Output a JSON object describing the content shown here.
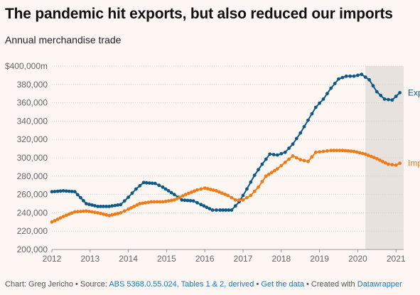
{
  "title": "The pandemic hit exports, but also reduced our imports",
  "subtitle": "Annual merchandise trade",
  "footer": {
    "credit": "Chart: Greg Jericho",
    "source_prefix": "Source:",
    "source": "ABS 5368.0.55.024, Tables 1 & 2, derived",
    "get_data": "Get the data",
    "created_prefix": "Created with",
    "tool": "Datawrapper"
  },
  "colors": {
    "exports": "#0d5a85",
    "imports": "#f07a14",
    "highlight": "#e8e2df",
    "grid": "#d6d0cd"
  },
  "chart_data": {
    "type": "line",
    "title": "The pandemic hit exports, but also reduced our imports",
    "subtitle": "Annual merchandise trade",
    "xlabel": "",
    "ylabel": "",
    "xlim": [
      2012,
      2021.2
    ],
    "ylim": [
      200000,
      400000
    ],
    "x_ticks": [
      "2012",
      "2013",
      "2014",
      "2015",
      "2016",
      "2017",
      "2018",
      "2019",
      "2020",
      "2021"
    ],
    "y_ticks": [
      "$400,000m",
      "380,000",
      "360,000",
      "340,000",
      "320,000",
      "300,000",
      "280,000",
      "260,000",
      "240,000",
      "220,000",
      "200,000"
    ],
    "grid": true,
    "highlight_range": [
      2020.2,
      2021.2
    ],
    "series": [
      {
        "name": "Exports",
        "points": [
          [
            2012.0,
            263000
          ],
          [
            2012.3,
            264000
          ],
          [
            2012.6,
            263000
          ],
          [
            2012.9,
            250000
          ],
          [
            2013.2,
            247000
          ],
          [
            2013.5,
            247000
          ],
          [
            2013.8,
            249000
          ],
          [
            2014.0,
            257000
          ],
          [
            2014.2,
            266000
          ],
          [
            2014.4,
            273000
          ],
          [
            2014.7,
            272000
          ],
          [
            2014.9,
            268000
          ],
          [
            2015.2,
            260000
          ],
          [
            2015.4,
            254000
          ],
          [
            2015.7,
            253000
          ],
          [
            2015.9,
            249000
          ],
          [
            2016.2,
            243000
          ],
          [
            2016.4,
            243000
          ],
          [
            2016.7,
            243000
          ],
          [
            2016.9,
            252000
          ],
          [
            2017.1,
            266000
          ],
          [
            2017.3,
            281000
          ],
          [
            2017.5,
            293000
          ],
          [
            2017.7,
            304000
          ],
          [
            2017.9,
            303000
          ],
          [
            2018.1,
            306000
          ],
          [
            2018.3,
            315000
          ],
          [
            2018.5,
            327000
          ],
          [
            2018.7,
            341000
          ],
          [
            2018.9,
            355000
          ],
          [
            2019.1,
            364000
          ],
          [
            2019.3,
            376000
          ],
          [
            2019.5,
            386000
          ],
          [
            2019.7,
            389000
          ],
          [
            2019.9,
            389000
          ],
          [
            2020.1,
            391000
          ],
          [
            2020.3,
            385000
          ],
          [
            2020.5,
            372000
          ],
          [
            2020.7,
            364000
          ],
          [
            2020.9,
            363000
          ],
          [
            2021.1,
            371000
          ]
        ]
      },
      {
        "name": "Imports",
        "points": [
          [
            2012.0,
            230000
          ],
          [
            2012.3,
            236000
          ],
          [
            2012.6,
            241000
          ],
          [
            2012.9,
            242000
          ],
          [
            2013.2,
            240000
          ],
          [
            2013.5,
            237000
          ],
          [
            2013.8,
            240000
          ],
          [
            2014.0,
            244000
          ],
          [
            2014.3,
            250000
          ],
          [
            2014.6,
            252000
          ],
          [
            2014.9,
            252000
          ],
          [
            2015.2,
            254000
          ],
          [
            2015.5,
            260000
          ],
          [
            2015.8,
            265000
          ],
          [
            2016.0,
            267000
          ],
          [
            2016.3,
            264000
          ],
          [
            2016.6,
            259000
          ],
          [
            2016.8,
            254000
          ],
          [
            2017.0,
            254000
          ],
          [
            2017.2,
            259000
          ],
          [
            2017.4,
            268000
          ],
          [
            2017.6,
            280000
          ],
          [
            2017.9,
            288000
          ],
          [
            2018.1,
            295000
          ],
          [
            2018.3,
            302000
          ],
          [
            2018.5,
            298000
          ],
          [
            2018.7,
            296000
          ],
          [
            2018.9,
            306000
          ],
          [
            2019.1,
            307000
          ],
          [
            2019.3,
            308000
          ],
          [
            2019.6,
            308000
          ],
          [
            2019.9,
            307000
          ],
          [
            2020.2,
            304000
          ],
          [
            2020.5,
            299000
          ],
          [
            2020.8,
            293000
          ],
          [
            2021.0,
            292000
          ],
          [
            2021.1,
            294000
          ]
        ]
      }
    ]
  }
}
